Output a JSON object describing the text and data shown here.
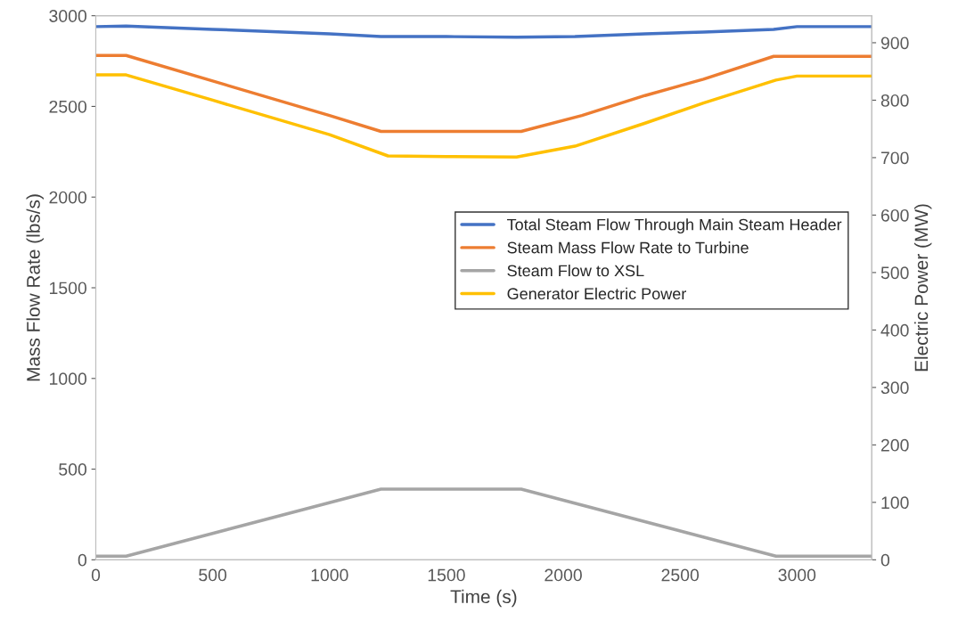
{
  "chart_data": {
    "type": "line",
    "xlabel": "Time (s)",
    "ylabel": "Mass Flow Rate (lbs/s)",
    "y2label": "Electric Power (MW)",
    "xlim": [
      0,
      3320
    ],
    "xticks": [
      0,
      500,
      1000,
      1500,
      2000,
      2500,
      3000
    ],
    "ylim": [
      0,
      3000
    ],
    "yticks": [
      0,
      500,
      1000,
      1500,
      2000,
      2500,
      3000
    ],
    "y2lim": [
      0,
      947
    ],
    "y2ticks": [
      0,
      100,
      200,
      300,
      400,
      500,
      600,
      700,
      800,
      900
    ],
    "grid": false,
    "legend": "right",
    "marker": "none",
    "line_style": "solid",
    "series": [
      {
        "name": "Total Steam Flow Through Main Steam Header",
        "color": "#4472c4",
        "x": [
          0,
          130,
          500,
          1000,
          1220,
          1500,
          1800,
          2050,
          2350,
          2600,
          2900,
          3000,
          3320
        ],
        "values": [
          2940,
          2943,
          2925,
          2900,
          2885,
          2885,
          2882,
          2885,
          2900,
          2910,
          2925,
          2940,
          2940
        ]
      },
      {
        "name": "Steam Mass Flow Rate to Turbine",
        "color": "#ed7d31",
        "x": [
          0,
          130,
          500,
          1000,
          1220,
          1500,
          1820,
          2080,
          2350,
          2600,
          2900,
          3320
        ],
        "values": [
          2781,
          2781,
          2640,
          2450,
          2362,
          2362,
          2362,
          2450,
          2560,
          2650,
          2776,
          2776
        ]
      },
      {
        "name": "Steam Flow to XSL",
        "color": "#a5a5a5",
        "x": [
          0,
          130,
          1220,
          1820,
          2910,
          3320
        ],
        "values": [
          20,
          20,
          390,
          390,
          20,
          20
        ]
      },
      {
        "name": "Generator Electric Power",
        "color": "#ffc000",
        "axis": "y2",
        "x": [
          0,
          130,
          500,
          1000,
          1250,
          1500,
          1800,
          2050,
          2350,
          2600,
          2910,
          3000,
          3320
        ],
        "values": [
          844,
          844,
          800,
          740,
          703,
          702,
          701,
          720,
          760,
          795,
          835,
          842,
          842
        ]
      }
    ]
  }
}
